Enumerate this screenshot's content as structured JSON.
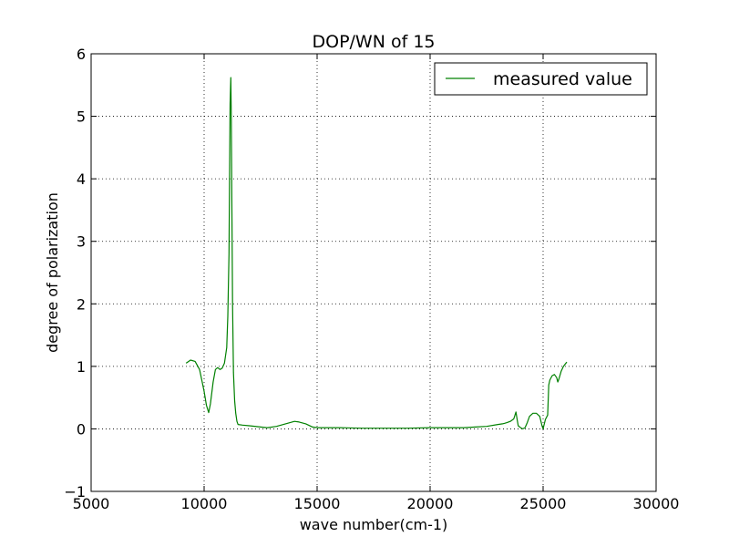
{
  "chart_data": {
    "type": "line",
    "title": "DOP/WN of 15",
    "xlabel": "wave number(cm-1)",
    "ylabel": "degree of polarization",
    "xlim": [
      5000,
      30000
    ],
    "ylim": [
      -1,
      6
    ],
    "xticks": [
      5000,
      10000,
      15000,
      20000,
      25000,
      30000
    ],
    "yticks": [
      -1,
      0,
      1,
      2,
      3,
      4,
      5,
      6
    ],
    "xtick_labels": [
      "5000",
      "10000",
      "15000",
      "20000",
      "25000",
      "30000"
    ],
    "ytick_labels": [
      "−1",
      "0",
      "1",
      "2",
      "3",
      "4",
      "5",
      "6"
    ],
    "grid": true,
    "legend": {
      "position": "top-right"
    },
    "series": [
      {
        "name": "measured value",
        "color": "#008000",
        "x": [
          9200,
          9400,
          9600,
          9800,
          10000,
          10100,
          10200,
          10280,
          10400,
          10500,
          10600,
          10700,
          10800,
          10900,
          11000,
          11050,
          11100,
          11120,
          11150,
          11180,
          11200,
          11230,
          11260,
          11300,
          11350,
          11400,
          11450,
          11500,
          11700,
          12000,
          12500,
          12800,
          13200,
          13600,
          14000,
          14200,
          14500,
          14800,
          15000,
          15500,
          16000,
          17000,
          18000,
          19000,
          20000,
          21000,
          21500,
          22000,
          22500,
          23000,
          23200,
          23300,
          23400,
          23550,
          23700,
          23800,
          23850,
          23900,
          24000,
          24100,
          24200,
          24300,
          24400,
          24550,
          24700,
          24850,
          24950,
          25000,
          25100,
          25200,
          25250,
          25300,
          25400,
          25500,
          25600,
          25650,
          25700,
          25800,
          25900,
          26050
        ],
        "y": [
          1.05,
          1.1,
          1.08,
          0.95,
          0.6,
          0.38,
          0.26,
          0.4,
          0.75,
          0.95,
          0.98,
          0.95,
          0.97,
          1.05,
          1.3,
          1.8,
          2.8,
          3.8,
          5.2,
          5.62,
          5.0,
          3.5,
          2.0,
          0.9,
          0.45,
          0.25,
          0.12,
          0.07,
          0.06,
          0.05,
          0.03,
          0.02,
          0.04,
          0.08,
          0.12,
          0.11,
          0.08,
          0.03,
          0.02,
          0.02,
          0.02,
          0.01,
          0.01,
          0.01,
          0.02,
          0.02,
          0.02,
          0.03,
          0.04,
          0.07,
          0.08,
          0.09,
          0.1,
          0.12,
          0.16,
          0.27,
          0.15,
          0.05,
          0.02,
          0.0,
          0.02,
          0.1,
          0.2,
          0.25,
          0.25,
          0.2,
          0.05,
          0.0,
          0.15,
          0.22,
          0.7,
          0.78,
          0.85,
          0.87,
          0.82,
          0.75,
          0.8,
          0.92,
          1.0,
          1.07
        ]
      }
    ]
  }
}
